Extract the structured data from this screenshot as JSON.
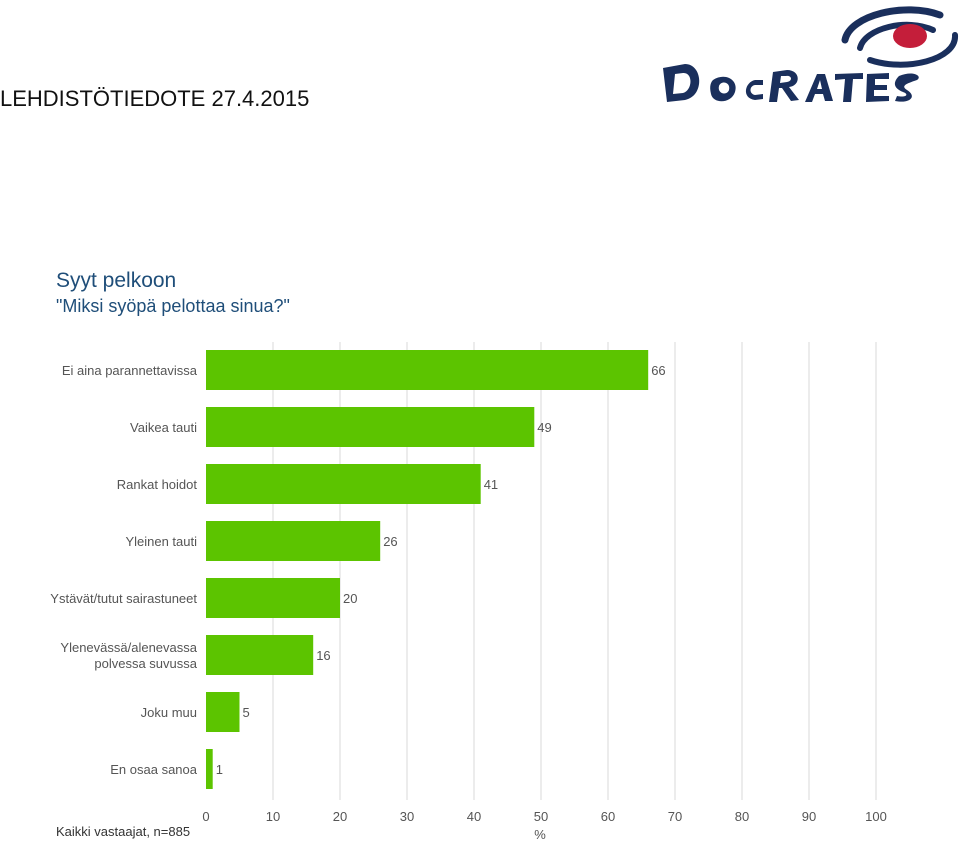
{
  "header": {
    "press_release": "LEHDISTÖTIEDOTE 27.4.2015",
    "logo_text": "DOCRATES"
  },
  "chart_data": {
    "type": "bar",
    "orientation": "horizontal",
    "title": "Syyt pelkoon",
    "subtitle": "\"Miksi syöpä pelottaa sinua?\"",
    "categories": [
      "Ei aina parannettavissa",
      "Vaikea tauti",
      "Rankat hoidot",
      "Yleinen tauti",
      "Ystävät/tutut sairastuneet",
      "Ylenevässä/alenevassa polvessa suvussa",
      "Joku muu",
      "En osaa sanoa"
    ],
    "values": [
      66,
      49,
      41,
      26,
      20,
      16,
      5,
      1
    ],
    "xlim": [
      0,
      100
    ],
    "xticks": [
      0,
      10,
      20,
      30,
      40,
      50,
      60,
      70,
      80,
      90,
      100
    ],
    "xlabel": "%",
    "ylabel": "",
    "grid": true,
    "bar_color": "#5cc400",
    "data_labels": true
  },
  "footnote": "Kaikki vastaajat, n=885",
  "colors": {
    "title": "#1f4e79",
    "logo_navy": "#1a2f5c",
    "logo_red": "#c41e3a"
  }
}
